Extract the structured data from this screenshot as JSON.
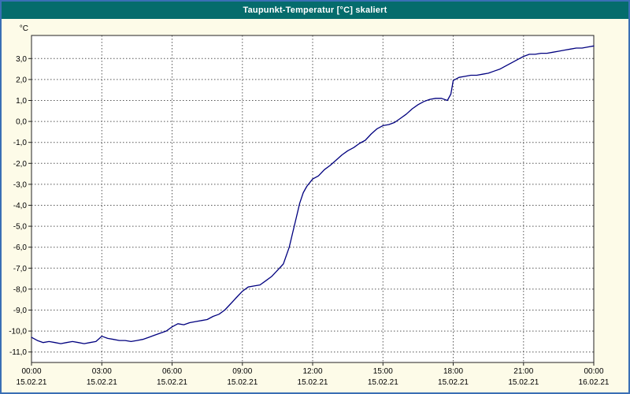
{
  "window": {
    "title": "Taupunkt-Temperatur [°C] skaliert",
    "colors": {
      "title_bar_bg": "#056c6c",
      "title_text": "#ffffff",
      "window_border": "#3a6fb5",
      "body_bg": "#fdfbe8",
      "plot_bg": "#ffffff"
    }
  },
  "chart_data": {
    "type": "line",
    "title": "Taupunkt-Temperatur [°C] skaliert",
    "unit_label": "°C",
    "xlim": [
      0,
      24
    ],
    "ylim": [
      -11.5,
      4.1
    ],
    "grid": true,
    "legend": "none",
    "line_color": "#00007f",
    "grid_color": "#555555",
    "axis_color": "#222222",
    "tick_text_color": "#000000",
    "yticks": [
      3,
      2,
      1,
      0,
      -1,
      -2,
      -3,
      -4,
      -5,
      -6,
      -7,
      -8,
      -9,
      -10,
      -11
    ],
    "ytick_labels": [
      "3,0",
      "2,0",
      "1,0",
      "0,0",
      "-1,0",
      "-2,0",
      "-3,0",
      "-4,0",
      "-5,0",
      "-6,0",
      "-7,0",
      "-8,0",
      "-9,0",
      "-10,0",
      "-11,0"
    ],
    "xticks": [
      0,
      3,
      6,
      9,
      12,
      15,
      18,
      21,
      24
    ],
    "xtick_time_labels": [
      "00:00",
      "03:00",
      "06:00",
      "09:00",
      "12:00",
      "15:00",
      "18:00",
      "21:00",
      "00:00"
    ],
    "xtick_date_labels": [
      "15.02.21",
      "15.02.21",
      "15.02.21",
      "15.02.21",
      "15.02.21",
      "15.02.21",
      "15.02.21",
      "15.02.21",
      "16.02.21"
    ],
    "series": [
      {
        "name": "Taupunkt-Temperatur",
        "x": [
          0,
          0.25,
          0.5,
          0.75,
          1,
          1.25,
          1.5,
          1.75,
          2,
          2.25,
          2.5,
          2.75,
          3,
          3.25,
          3.5,
          3.75,
          4,
          4.25,
          4.5,
          4.75,
          5,
          5.25,
          5.5,
          5.75,
          6,
          6.25,
          6.5,
          6.75,
          7,
          7.25,
          7.5,
          7.75,
          8,
          8.25,
          8.5,
          8.75,
          9,
          9.25,
          9.5,
          9.75,
          10,
          10.25,
          10.5,
          10.75,
          11,
          11.15,
          11.3,
          11.45,
          11.6,
          11.75,
          12,
          12.25,
          12.5,
          12.75,
          13,
          13.25,
          13.5,
          13.75,
          14,
          14.25,
          14.5,
          14.75,
          15,
          15.25,
          15.5,
          15.75,
          16,
          16.25,
          16.5,
          16.75,
          17,
          17.25,
          17.5,
          17.75,
          17.9,
          18,
          18.25,
          18.5,
          18.75,
          19,
          19.25,
          19.5,
          19.75,
          20,
          20.25,
          20.5,
          20.75,
          21,
          21.25,
          21.5,
          21.75,
          22,
          22.25,
          22.5,
          22.75,
          23,
          23.25,
          23.5,
          23.75,
          24
        ],
        "y": [
          -10.3,
          -10.45,
          -10.55,
          -10.5,
          -10.55,
          -10.6,
          -10.55,
          -10.5,
          -10.55,
          -10.6,
          -10.55,
          -10.5,
          -10.25,
          -10.35,
          -10.4,
          -10.45,
          -10.45,
          -10.5,
          -10.45,
          -10.4,
          -10.3,
          -10.2,
          -10.1,
          -10.0,
          -9.8,
          -9.65,
          -9.7,
          -9.6,
          -9.55,
          -9.5,
          -9.45,
          -9.3,
          -9.2,
          -9.0,
          -8.7,
          -8.4,
          -8.1,
          -7.9,
          -7.85,
          -7.8,
          -7.6,
          -7.4,
          -7.1,
          -6.8,
          -6.0,
          -5.3,
          -4.6,
          -3.9,
          -3.4,
          -3.1,
          -2.75,
          -2.6,
          -2.3,
          -2.1,
          -1.85,
          -1.6,
          -1.4,
          -1.25,
          -1.05,
          -0.9,
          -0.6,
          -0.35,
          -0.2,
          -0.15,
          -0.05,
          0.15,
          0.35,
          0.6,
          0.8,
          0.95,
          1.05,
          1.1,
          1.1,
          1.0,
          1.3,
          1.95,
          2.1,
          2.15,
          2.2,
          2.2,
          2.25,
          2.3,
          2.4,
          2.5,
          2.65,
          2.8,
          2.95,
          3.1,
          3.2,
          3.2,
          3.25,
          3.25,
          3.3,
          3.35,
          3.4,
          3.45,
          3.5,
          3.5,
          3.55,
          3.6
        ]
      }
    ]
  }
}
